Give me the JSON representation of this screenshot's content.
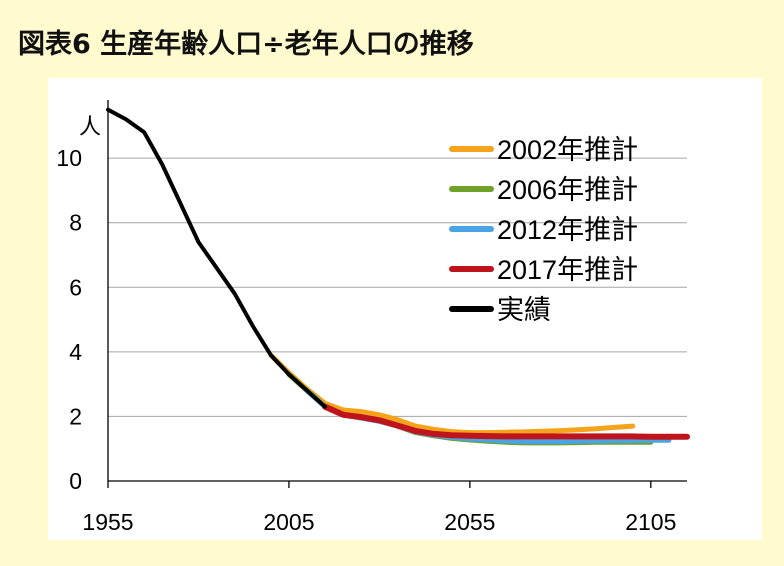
{
  "colors": {
    "background": "#FFFBCF",
    "plot_background": "#FFFFFF",
    "grid": "#A6A6A6",
    "axis": "#000000"
  },
  "chart_data": {
    "type": "line",
    "title": "図表6 生産年齢人口÷老年人口の推移",
    "ylabel": "人",
    "xlim": [
      1955,
      2115
    ],
    "ylim": [
      0,
      11.8
    ],
    "xticks": [
      1955,
      2005,
      2055,
      2105
    ],
    "yticks": [
      0,
      2,
      4,
      6,
      8,
      10
    ],
    "grid": true,
    "legend_position": "top-right",
    "series": [
      {
        "name": "2002年推計",
        "color": "#F5A31A",
        "x": [
          2000,
          2005,
          2010,
          2015,
          2020,
          2025,
          2030,
          2035,
          2040,
          2045,
          2050,
          2055,
          2060,
          2065,
          2070,
          2075,
          2080,
          2085,
          2090,
          2095,
          2100
        ],
        "y": [
          3.9,
          3.35,
          2.85,
          2.4,
          2.2,
          2.15,
          2.05,
          1.9,
          1.7,
          1.6,
          1.53,
          1.5,
          1.5,
          1.51,
          1.52,
          1.54,
          1.56,
          1.59,
          1.62,
          1.66,
          1.7
        ]
      },
      {
        "name": "2006年推計",
        "color": "#6FA22B",
        "x": [
          2005,
          2010,
          2015,
          2020,
          2025,
          2030,
          2035,
          2040,
          2045,
          2050,
          2055,
          2060,
          2065,
          2070,
          2075,
          2080,
          2085,
          2090,
          2095,
          2100,
          2105
        ],
        "y": [
          3.3,
          2.8,
          2.3,
          2.05,
          1.95,
          1.85,
          1.7,
          1.5,
          1.4,
          1.32,
          1.27,
          1.23,
          1.2,
          1.18,
          1.18,
          1.18,
          1.19,
          1.2,
          1.2,
          1.2,
          1.2
        ]
      },
      {
        "name": "2012年推計",
        "color": "#4AA3E2",
        "x": [
          2010,
          2015,
          2020,
          2025,
          2030,
          2035,
          2040,
          2045,
          2050,
          2055,
          2060,
          2065,
          2070,
          2075,
          2080,
          2085,
          2090,
          2095,
          2100,
          2105,
          2110
        ],
        "y": [
          2.8,
          2.3,
          2.05,
          1.95,
          1.85,
          1.7,
          1.52,
          1.42,
          1.35,
          1.3,
          1.27,
          1.24,
          1.22,
          1.22,
          1.22,
          1.23,
          1.24,
          1.25,
          1.25,
          1.26,
          1.26
        ]
      },
      {
        "name": "2017年推計",
        "color": "#C0141C",
        "x": [
          2015,
          2020,
          2025,
          2030,
          2035,
          2040,
          2045,
          2050,
          2055,
          2060,
          2065,
          2070,
          2075,
          2080,
          2085,
          2090,
          2095,
          2100,
          2105,
          2110,
          2115
        ],
        "y": [
          2.3,
          2.05,
          1.98,
          1.88,
          1.72,
          1.55,
          1.46,
          1.42,
          1.4,
          1.39,
          1.38,
          1.38,
          1.38,
          1.38,
          1.38,
          1.38,
          1.38,
          1.38,
          1.37,
          1.37,
          1.37
        ]
      },
      {
        "name": "実績",
        "color": "#000000",
        "x": [
          1955,
          1960,
          1965,
          1970,
          1975,
          1980,
          1985,
          1990,
          1995,
          2000,
          2005,
          2010,
          2015
        ],
        "y": [
          11.5,
          11.2,
          10.8,
          9.8,
          8.6,
          7.4,
          6.6,
          5.8,
          4.8,
          3.9,
          3.3,
          2.8,
          2.3
        ]
      }
    ]
  }
}
